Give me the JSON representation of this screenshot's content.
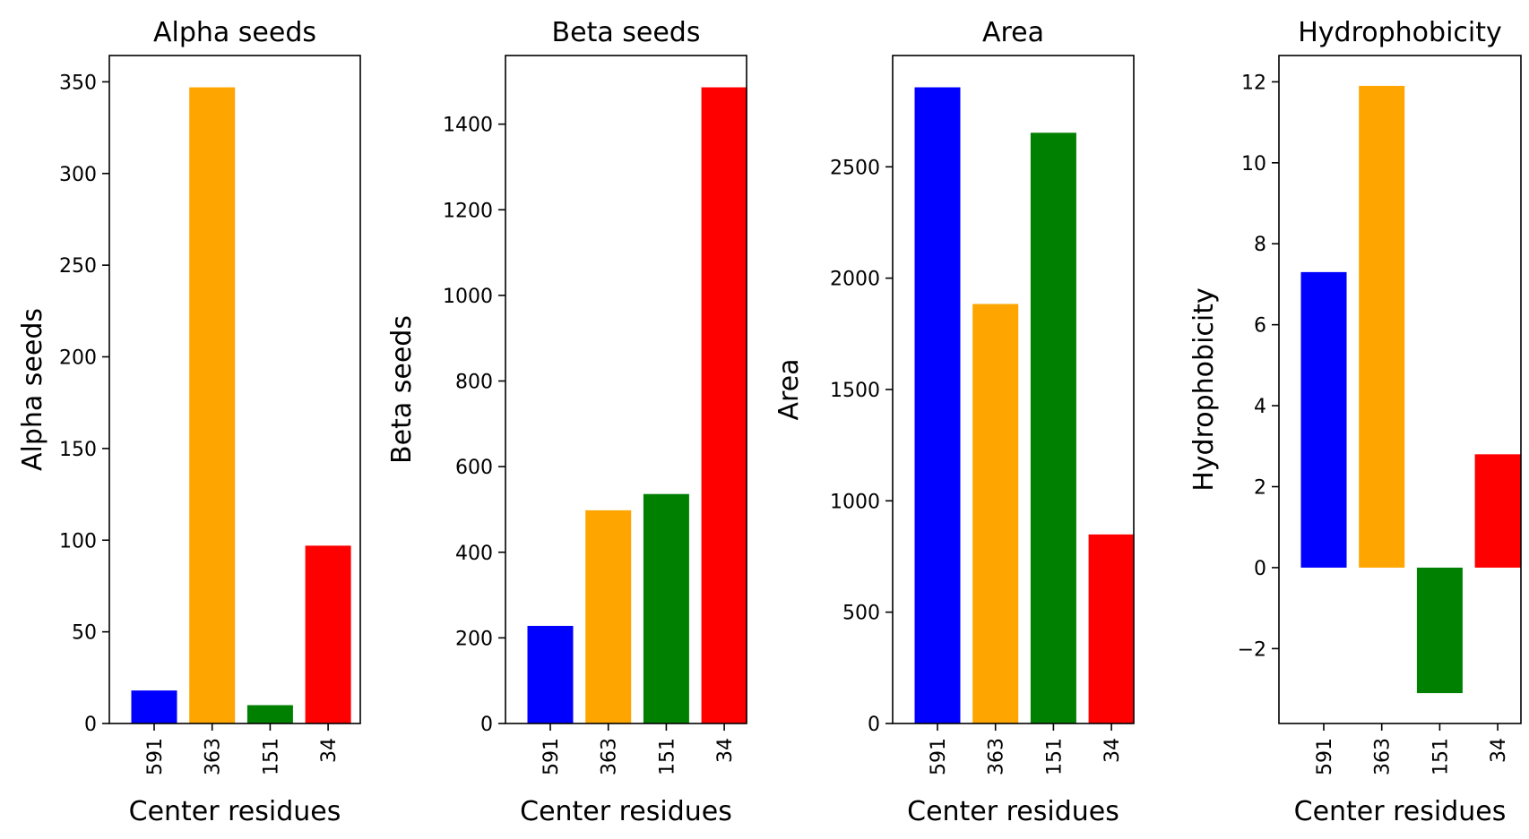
{
  "figure": {
    "panels": 4
  },
  "chart_data": [
    {
      "type": "bar",
      "title": "Alpha seeds",
      "xlabel": "Center residues",
      "ylabel": "Alpha seeds",
      "categories": [
        "591",
        "363",
        "151",
        "34"
      ],
      "values": [
        18,
        347,
        10,
        97
      ],
      "colors": [
        "#0000ff",
        "#ffa500",
        "#008000",
        "#ff0000"
      ],
      "ylim": [
        0,
        364.35
      ],
      "yticks": [
        0,
        50,
        100,
        150,
        200,
        250,
        300,
        350
      ],
      "ytick_labels": [
        "0",
        "50",
        "100",
        "150",
        "200",
        "250",
        "300",
        "350"
      ],
      "grid": false,
      "legend": "none"
    },
    {
      "type": "bar",
      "title": "Beta seeds",
      "xlabel": "Center residues",
      "ylabel": "Beta seeds",
      "categories": [
        "591",
        "363",
        "151",
        "34"
      ],
      "values": [
        228,
        498,
        536,
        1486
      ],
      "colors": [
        "#0000ff",
        "#ffa500",
        "#008000",
        "#ff0000"
      ],
      "ylim": [
        0,
        1560.3
      ],
      "yticks": [
        0,
        200,
        400,
        600,
        800,
        1000,
        1200,
        1400
      ],
      "ytick_labels": [
        "0",
        "200",
        "400",
        "600",
        "800",
        "1000",
        "1200",
        "1400"
      ],
      "grid": false,
      "legend": "none"
    },
    {
      "type": "bar",
      "title": "Area",
      "xlabel": "Center residues",
      "ylabel": "Area",
      "categories": [
        "591",
        "363",
        "151",
        "34"
      ],
      "values": [
        2857,
        1884,
        2653,
        849
      ],
      "colors": [
        "#0000ff",
        "#ffa500",
        "#008000",
        "#ff0000"
      ],
      "ylim": [
        0,
        2999.85
      ],
      "yticks": [
        0,
        500,
        1000,
        1500,
        2000,
        2500
      ],
      "ytick_labels": [
        "0",
        "500",
        "1000",
        "1500",
        "2000",
        "2500"
      ],
      "grid": false,
      "legend": "none"
    },
    {
      "type": "bar",
      "title": "Hydrophobicity",
      "xlabel": "Center residues",
      "ylabel": "Hydrophobicity",
      "categories": [
        "591",
        "363",
        "151",
        "34"
      ],
      "values": [
        7.3,
        11.9,
        -3.1,
        2.8
      ],
      "colors": [
        "#0000ff",
        "#ffa500",
        "#008000",
        "#ff0000"
      ],
      "ylim": [
        -3.85,
        12.65
      ],
      "yticks": [
        -2,
        0,
        2,
        4,
        6,
        8,
        10,
        12
      ],
      "ytick_labels": [
        "−2",
        "0",
        "2",
        "4",
        "6",
        "8",
        "10",
        "12"
      ],
      "grid": false,
      "legend": "none"
    }
  ]
}
